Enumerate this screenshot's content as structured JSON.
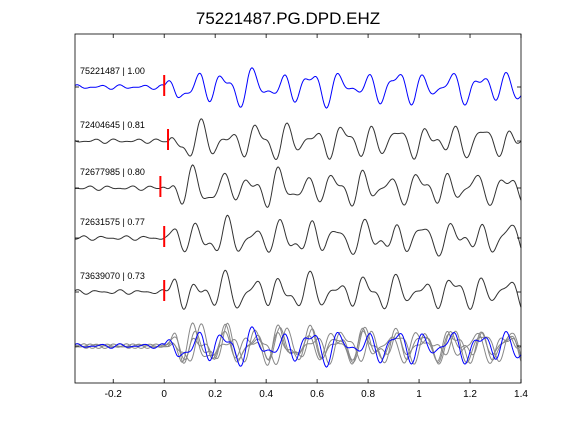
{
  "chart_data": {
    "type": "line",
    "title": "75221487.PG.DPD.EHZ",
    "xlabel": "",
    "ylabel": "",
    "xlim": [
      -0.35,
      1.4
    ],
    "xticks": [
      -0.2,
      0,
      0.2,
      0.4,
      0.6,
      0.8,
      1.0,
      1.2,
      1.4
    ],
    "xtick_labels": [
      "-0.2",
      "0",
      "0.2",
      "0.4",
      "0.6",
      "0.8",
      "1",
      "1.2",
      "1.4"
    ],
    "grid": false,
    "legend": "none",
    "colors": {
      "reference": "#0000ff",
      "match": "#333333",
      "stack": "#888888",
      "pick": "#ff0000",
      "axis": "#000000"
    },
    "traces": [
      {
        "label": "75221487 | 1.00",
        "color": "#0000ff",
        "pick_time": 0.0,
        "seed": 1
      },
      {
        "label": "72404645 | 0.81",
        "color": "#333333",
        "pick_time": 0.015,
        "seed": 2
      },
      {
        "label": "72677985 | 0.80",
        "color": "#333333",
        "pick_time": -0.015,
        "seed": 3
      },
      {
        "label": "72631575 | 0.77",
        "color": "#333333",
        "pick_time": 0.0,
        "seed": 4
      },
      {
        "label": "73639070 | 0.73",
        "color": "#333333",
        "pick_time": 0.0,
        "seed": 5
      }
    ]
  }
}
